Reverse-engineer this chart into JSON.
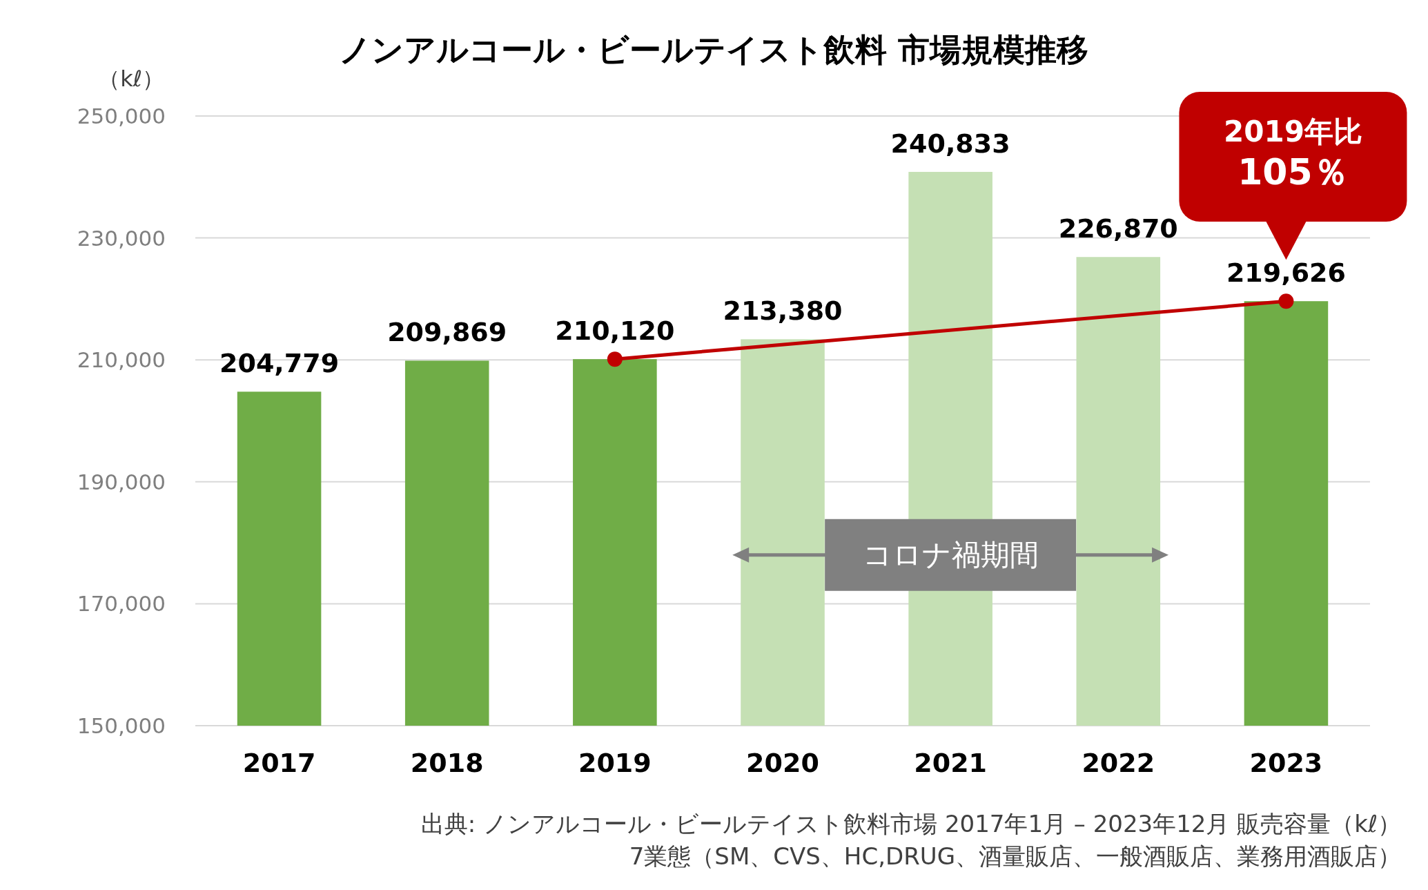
{
  "chart_data": {
    "type": "bar",
    "title": "ノンアルコール・ビールテイスト飲料 市場規模推移",
    "ylabel": "（kℓ）",
    "categories": [
      "2017",
      "2018",
      "2019",
      "2020",
      "2021",
      "2022",
      "2023"
    ],
    "series": [
      {
        "values": [
          204779,
          209869,
          210120,
          213380,
          240833,
          226870,
          219626
        ],
        "colors": [
          "#70ad47",
          "#70ad47",
          "#70ad47",
          "#c5e0b4",
          "#c5e0b4",
          "#c5e0b4",
          "#70ad47"
        ],
        "value_labels": [
          "204,779",
          "209,869",
          "210,120",
          "213,380",
          "240,833",
          "226,870",
          "219,626"
        ]
      },
      {
        "type": "line",
        "values": [
          null,
          null,
          210120,
          null,
          null,
          null,
          219626
        ],
        "color": "#c00000",
        "marker": "circle"
      }
    ],
    "ylim": [
      150000,
      250000
    ],
    "yticks": [
      {
        "value": 150000,
        "label": "150,000"
      },
      {
        "value": 170000,
        "label": "170,000"
      },
      {
        "value": 190000,
        "label": "190,000"
      },
      {
        "value": 210000,
        "label": "210,000"
      },
      {
        "value": 230000,
        "label": "230,000"
      },
      {
        "value": 250000,
        "label": "250,000"
      }
    ],
    "grid": "y",
    "bands": [
      {
        "axis": "x",
        "from": "2020",
        "to": "2022",
        "label": "コロナ禍期間",
        "color": "#808080"
      }
    ],
    "annotations": [
      "2019年比\n105％",
      "出典: ノンアルコール・ビールテイスト飲料市場 2017年1月 – 2023年12月 販売容量（kℓ）",
      "7業態（SM、CVS、HC,DRUG、酒量販店、一般酒販店、業務用酒販店）"
    ]
  }
}
